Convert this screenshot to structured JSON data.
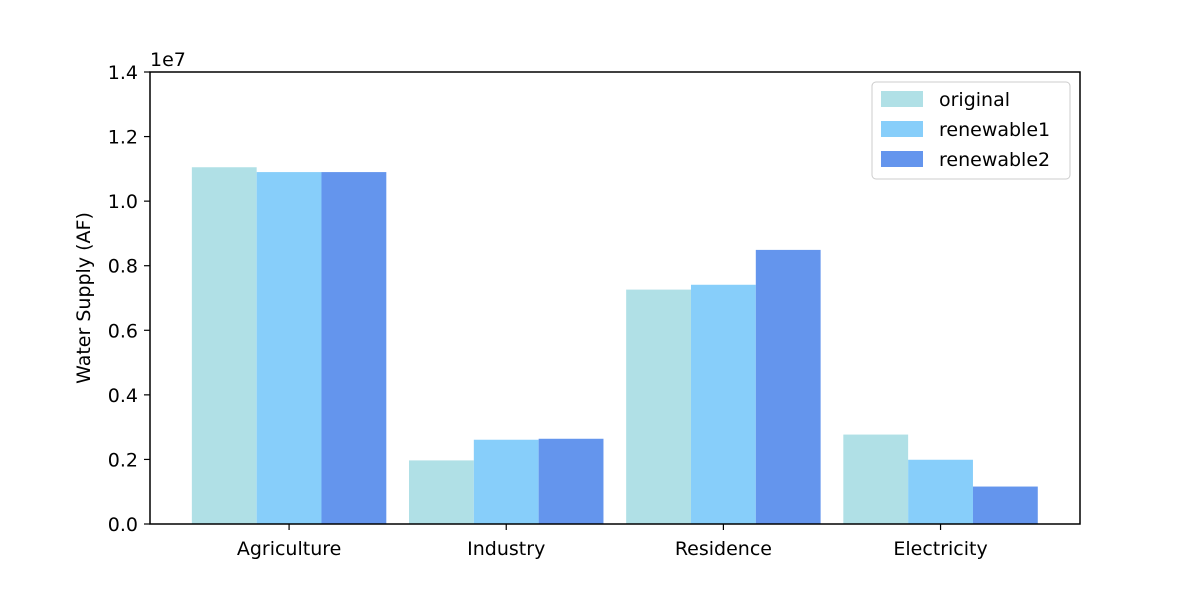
{
  "chart_data": {
    "type": "bar",
    "categories": [
      "Agriculture",
      "Industry",
      "Residence",
      "Electricity"
    ],
    "series": [
      {
        "name": "original",
        "color": "#b0e0e6",
        "values": [
          11050000,
          1970000,
          7260000,
          2770000
        ]
      },
      {
        "name": "renewable1",
        "color": "#87cefa",
        "values": [
          10900000,
          2610000,
          7410000,
          1990000
        ]
      },
      {
        "name": "renewable2",
        "color": "#6495ed",
        "values": [
          10900000,
          2640000,
          8490000,
          1160000
        ]
      }
    ],
    "xlabel": "",
    "ylabel": "Water Supply (AF)",
    "ylim": [
      0,
      14000000
    ],
    "y_ticks": [
      "0.0",
      "0.2",
      "0.4",
      "0.6",
      "0.8",
      "1.0",
      "1.2",
      "1.4"
    ],
    "y_offset_label": "1e7",
    "grid": false,
    "legend_position": "top-right"
  }
}
